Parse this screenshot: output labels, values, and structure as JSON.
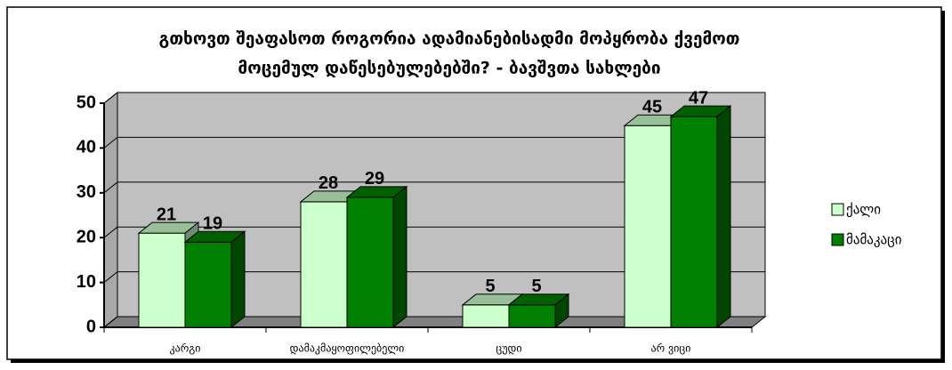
{
  "chart_data": {
    "type": "bar3d",
    "title": [
      "გთხოვთ შეაფასოთ როგორია ადამიანებისადმი მოპყრობა ქვემოთ",
      "მოცემულ დაწესებულებებში?  - ბავშვთა სახლები"
    ],
    "categories": [
      "კარგი",
      "დამაკმაყოფილებელი",
      "ცუდი",
      "არ ვიცი"
    ],
    "series": [
      {
        "name": "ქალი",
        "color": "#ccffcc",
        "values": [
          21,
          28,
          5,
          45
        ]
      },
      {
        "name": "მამაკაცი",
        "color": "#008000",
        "values": [
          19,
          29,
          5,
          47
        ]
      }
    ],
    "ylim": [
      0,
      50
    ],
    "yticks": [
      0,
      10,
      20,
      30,
      40,
      50
    ],
    "grid": true,
    "legend": "right"
  }
}
